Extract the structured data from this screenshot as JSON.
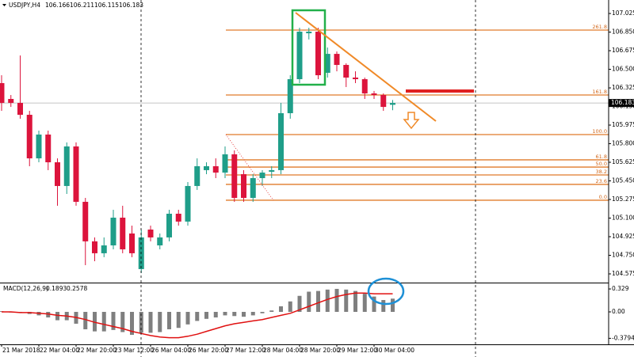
{
  "chart_data": {
    "type": "candlestick",
    "symbol": "USDJPY,H4",
    "colors": {
      "up": "#1f9e89",
      "down": "#dc143c",
      "fib": "#e07b2a",
      "price_line": "#b0b0b0",
      "histogram": "#7f7f7f",
      "signal": "#e01010"
    },
    "xlim": [
      -0.17,
      65.19
    ],
    "xticks": [
      {
        "value": 0,
        "label": "21 Mar 2018"
      },
      {
        "value": 4,
        "label": "22 Mar 04:00"
      },
      {
        "value": 8,
        "label": "22 Mar 20:00"
      },
      {
        "value": 12,
        "label": "23 Mar 12:00"
      },
      {
        "value": 16,
        "label": "26 Mar 04:00"
      },
      {
        "value": 20,
        "label": "26 Mar 20:00"
      },
      {
        "value": 24,
        "label": "27 Mar 12:00"
      },
      {
        "value": 28,
        "label": "28 Mar 04:00"
      },
      {
        "value": 32,
        "label": "28 Mar 20:00"
      },
      {
        "value": 36,
        "label": "29 Mar 12:00"
      },
      {
        "value": 40,
        "label": "30 Mar 04:00"
      }
    ],
    "ylim": [
      104.493,
      107.152
    ],
    "yticks": [
      107.025,
      {
        "value": 106.85,
        "label": "106.850"
      },
      106.675,
      {
        "value": 106.5,
        "label": "106.500"
      },
      106.325,
      {
        "value": 106.15,
        "label": "106.150"
      },
      105.975,
      {
        "value": 105.8,
        "label": "105.800"
      },
      105.625,
      {
        "value": 105.45,
        "label": "105.450"
      },
      105.275,
      {
        "value": 105.1,
        "label": "105.100"
      },
      104.925,
      {
        "value": 104.75,
        "label": "104.750"
      },
      104.575
    ],
    "candles": {
      "open": [
        106.37,
        106.221,
        106.184,
        106.072,
        105.662,
        105.886,
        105.625,
        105.402,
        105.774,
        105.253,
        104.881,
        104.769,
        104.843,
        105.104,
        104.955,
        104.62,
        104.992,
        104.843,
        104.918,
        105.141,
        105.067,
        105.402,
        105.551,
        105.588,
        105.528,
        105.7,
        105.513,
        105.29,
        105.476,
        105.536,
        105.551,
        106.087,
        106.407,
        106.839,
        106.854,
        106.467,
        106.645,
        106.541,
        106.422,
        106.407,
        106.273,
        106.258,
        106.166
      ],
      "high": [
        106.444,
        106.258,
        106.63,
        106.109,
        105.923,
        105.923,
        105.662,
        105.812,
        105.812,
        105.29,
        104.918,
        104.918,
        105.178,
        105.216,
        105.029,
        104.992,
        105.029,
        104.955,
        105.178,
        105.178,
        105.439,
        105.662,
        105.625,
        105.662,
        105.774,
        105.737,
        105.551,
        105.513,
        105.551,
        105.588,
        106.184,
        106.444,
        106.891,
        106.891,
        106.891,
        106.705,
        106.668,
        106.556,
        106.481,
        106.422,
        106.296,
        106.273,
        106.211
      ],
      "low": [
        106.109,
        106.146,
        106.035,
        105.588,
        105.625,
        105.551,
        105.216,
        105.327,
        105.216,
        104.657,
        104.694,
        104.732,
        104.806,
        104.769,
        104.732,
        104.583,
        104.881,
        104.806,
        104.881,
        105.029,
        105.029,
        105.365,
        105.513,
        105.476,
        105.476,
        105.253,
        105.253,
        105.253,
        105.402,
        105.476,
        105.513,
        106.035,
        106.37,
        106.781,
        106.407,
        106.422,
        106.481,
        106.333,
        106.37,
        106.221,
        106.221,
        106.109,
        106.115
      ],
      "close": [
        106.184,
        106.184,
        106.072,
        105.662,
        105.886,
        105.625,
        105.402,
        105.774,
        105.253,
        104.881,
        104.769,
        104.843,
        105.104,
        104.806,
        104.769,
        104.918,
        104.918,
        104.918,
        105.141,
        105.067,
        105.402,
        105.588,
        105.588,
        105.528,
        105.7,
        105.29,
        105.29,
        105.476,
        105.528,
        105.551,
        106.087,
        106.407,
        106.854,
        106.854,
        106.444,
        106.645,
        106.541,
        106.422,
        106.407,
        106.273,
        106.258,
        106.146,
        106.183
      ]
    },
    "fib_levels": [
      {
        "label": "261.8",
        "value": 106.869
      },
      {
        "label": "161.8",
        "value": 106.258
      },
      {
        "label": "100.0",
        "value": 105.886
      },
      {
        "label": "61.8",
        "value": 105.648
      },
      {
        "label": "50.0",
        "value": 105.58
      },
      {
        "label": "38.2",
        "value": 105.506
      },
      {
        "label": "23.6",
        "value": 105.417
      },
      {
        "label": "0.0",
        "value": 105.268
      }
    ],
    "macd": {
      "title": "MACD(12,26,9)",
      "header_values": [
        0.1893,
        0.2578
      ],
      "y2lim": [
        -0.466,
        0.409
      ],
      "y2ticks": [
        0.329,
        {
          "value": 0,
          "label": "0.00"
        },
        -0.3794
      ],
      "histogram": [
        0.01,
        0.0,
        -0.01,
        -0.03,
        -0.05,
        -0.08,
        -0.12,
        -0.12,
        -0.17,
        -0.25,
        -0.28,
        -0.28,
        -0.26,
        -0.29,
        -0.33,
        -0.3,
        -0.3,
        -0.29,
        -0.25,
        -0.23,
        -0.18,
        -0.13,
        -0.1,
        -0.08,
        -0.05,
        -0.06,
        -0.07,
        -0.05,
        -0.02,
        0.02,
        0.08,
        0.15,
        0.23,
        0.29,
        0.3,
        0.32,
        0.33,
        0.32,
        0.3,
        0.26,
        0.22,
        0.17,
        0.19
      ],
      "signal": [
        0.0,
        0.0,
        -0.01,
        -0.01,
        -0.02,
        -0.03,
        -0.05,
        -0.06,
        -0.08,
        -0.11,
        -0.15,
        -0.18,
        -0.21,
        -0.24,
        -0.28,
        -0.31,
        -0.34,
        -0.36,
        -0.37,
        -0.37,
        -0.35,
        -0.32,
        -0.28,
        -0.24,
        -0.2,
        -0.17,
        -0.15,
        -0.13,
        -0.11,
        -0.08,
        -0.05,
        -0.02,
        0.03,
        0.08,
        0.13,
        0.18,
        0.22,
        0.25,
        0.27,
        0.27,
        0.26,
        0.26,
        0.26
      ]
    }
  }
}
